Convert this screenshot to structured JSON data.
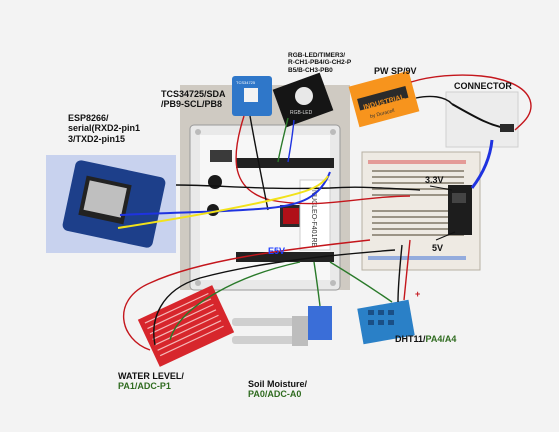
{
  "labels": {
    "esp_line1": "ESP8266/",
    "esp_line2": "serial(RXD2-pin1",
    "esp_line3": "3/TXD2-pin15",
    "tcs_line1": "TCS34725/SDA",
    "tcs_line2": "/PB9-SCL/PB8",
    "rgb_line1": "RGB-LED/TIMER3/",
    "rgb_line2": "R-CH1-PB4/G-CH2-P",
    "rgb_line3": "B5/B-CH3-PB0",
    "power": "PW SP/9V",
    "connector": "CONNECTOR",
    "v33": "3.3V",
    "v5": "5V",
    "e5v": "E5V",
    "plus": "+",
    "dht_prefix": "DHT11/",
    "dht_pins": "PA4/A4",
    "water_line1": "WATER LEVEL/",
    "water_line2": "PA1/ADC-P1",
    "soil_line1": "Soil Moisture/",
    "soil_line2": "PA0/ADC-A0"
  },
  "board_text": {
    "nucleo": "NUCLEO-F401RE",
    "battery_brand": "INDUSTRIAL",
    "battery_sub": "by Duracell",
    "rgb_module": "RGB-LED",
    "tcs_module": "TCS34725"
  },
  "colors": {
    "wire_red": "#c4161c",
    "wire_black": "#111111",
    "wire_blue": "#1f33e0",
    "wire_yellow": "#f2e21a",
    "wire_green": "#2a7a2a",
    "esp_blue": "#1d3f8a",
    "dht_blue": "#4da6d8",
    "water_red": "#d7262c",
    "battery_orange": "#f7941d"
  }
}
